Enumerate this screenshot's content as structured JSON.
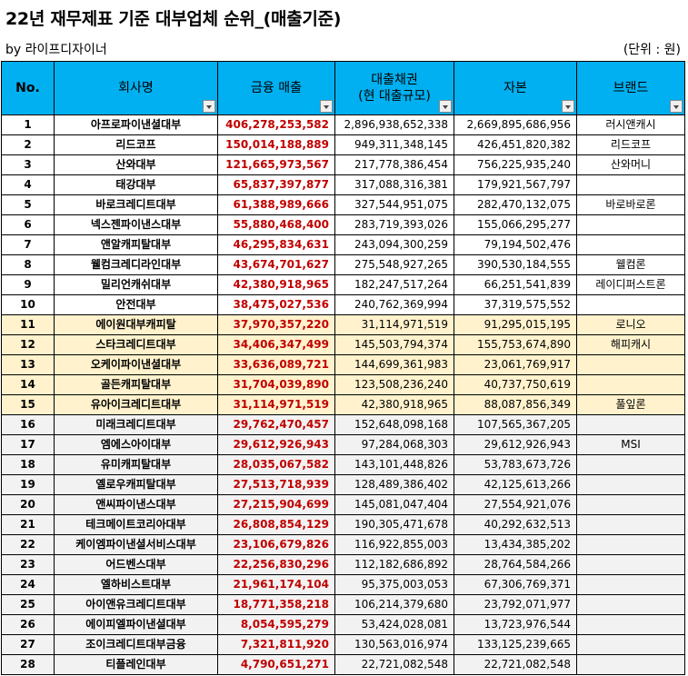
{
  "title": "22년 재무제표 기준 대부업체 순위_(매출기준)",
  "byline": "by 라이프디자이너",
  "unit": "(단위 : 원)",
  "headers": {
    "no": "No.",
    "company": "회사명",
    "revenue": "금융 매출",
    "loan_line1": "대출채권",
    "loan_line2": "(현 대출규모)",
    "capital": "자본",
    "brand": "브랜드"
  },
  "rows": [
    {
      "no": "1",
      "company": "아프로파이낸셜대부",
      "revenue": "406,278,253,582",
      "loans": "2,896,938,652,338",
      "capital": "2,669,895,686,956",
      "brand": "러시앤캐시"
    },
    {
      "no": "2",
      "company": "리드코프",
      "revenue": "150,014,188,889",
      "loans": "949,311,348,145",
      "capital": "426,451,820,382",
      "brand": "리드코프"
    },
    {
      "no": "3",
      "company": "산와대부",
      "revenue": "121,665,973,567",
      "loans": "217,778,386,454",
      "capital": "756,225,935,240",
      "brand": "산와머니"
    },
    {
      "no": "4",
      "company": "태강대부",
      "revenue": "65,837,397,877",
      "loans": "317,088,316,381",
      "capital": "179,921,567,797",
      "brand": ""
    },
    {
      "no": "5",
      "company": "바로크레디트대부",
      "revenue": "61,388,989,666",
      "loans": "327,544,951,075",
      "capital": "282,470,132,075",
      "brand": "바로바로론"
    },
    {
      "no": "6",
      "company": "넥스젠파이낸스대부",
      "revenue": "55,880,468,400",
      "loans": "283,719,393,026",
      "capital": "155,066,295,277",
      "brand": ""
    },
    {
      "no": "7",
      "company": "앤알캐피탈대부",
      "revenue": "46,295,834,631",
      "loans": "243,094,300,259",
      "capital": "79,194,502,476",
      "brand": ""
    },
    {
      "no": "8",
      "company": "웰컴크레디라인대부",
      "revenue": "43,674,701,627",
      "loans": "275,548,927,265",
      "capital": "390,530,184,555",
      "brand": "웰컴론"
    },
    {
      "no": "9",
      "company": "밀리언캐쉬대부",
      "revenue": "42,380,918,965",
      "loans": "182,247,517,264",
      "capital": "66,251,541,839",
      "brand": "레이디퍼스트론"
    },
    {
      "no": "10",
      "company": "안전대부",
      "revenue": "38,475,027,536",
      "loans": "240,762,369,994",
      "capital": "37,319,575,552",
      "brand": ""
    },
    {
      "no": "11",
      "company": "에이원대부캐피탈",
      "revenue": "37,970,357,220",
      "loans": "31,114,971,519",
      "capital": "91,295,015,195",
      "brand": "로니오"
    },
    {
      "no": "12",
      "company": "스타크레디트대부",
      "revenue": "34,406,347,499",
      "loans": "145,503,794,374",
      "capital": "155,753,674,890",
      "brand": "해피캐시"
    },
    {
      "no": "13",
      "company": "오케이파이낸셜대부",
      "revenue": "33,636,089,721",
      "loans": "144,699,361,983",
      "capital": "23,061,769,917",
      "brand": ""
    },
    {
      "no": "14",
      "company": "골든캐피탈대부",
      "revenue": "31,704,039,890",
      "loans": "123,508,236,240",
      "capital": "40,737,750,619",
      "brand": ""
    },
    {
      "no": "15",
      "company": "유아이크레디트대부",
      "revenue": "31,114,971,519",
      "loans": "42,380,918,965",
      "capital": "88,087,856,349",
      "brand": "풀잎론"
    },
    {
      "no": "16",
      "company": "미래크레디트대부",
      "revenue": "29,762,470,457",
      "loans": "152,648,098,168",
      "capital": "107,565,367,205",
      "brand": ""
    },
    {
      "no": "17",
      "company": "엠에스아이대부",
      "revenue": "29,612,926,943",
      "loans": "97,284,068,303",
      "capital": "29,612,926,943",
      "brand": "MSI"
    },
    {
      "no": "18",
      "company": "유미캐피탈대부",
      "revenue": "28,035,067,582",
      "loans": "143,101,448,826",
      "capital": "53,783,673,726",
      "brand": ""
    },
    {
      "no": "19",
      "company": "옐로우캐피탈대부",
      "revenue": "27,513,718,939",
      "loans": "128,489,386,402",
      "capital": "42,125,613,266",
      "brand": ""
    },
    {
      "no": "20",
      "company": "앤씨파이낸스대부",
      "revenue": "27,215,904,699",
      "loans": "145,081,047,404",
      "capital": "27,554,921,076",
      "brand": ""
    },
    {
      "no": "21",
      "company": "테크메이트코리아대부",
      "revenue": "26,808,854,129",
      "loans": "190,305,471,678",
      "capital": "40,292,632,513",
      "brand": ""
    },
    {
      "no": "22",
      "company": "케이엠파이낸셜서비스대부",
      "revenue": "23,106,679,826",
      "loans": "116,922,855,003",
      "capital": "13,434,385,202",
      "brand": ""
    },
    {
      "no": "23",
      "company": "어드벤스대부",
      "revenue": "22,256,830,296",
      "loans": "112,182,686,892",
      "capital": "28,764,584,266",
      "brand": ""
    },
    {
      "no": "24",
      "company": "엘하비스트대부",
      "revenue": "21,961,174,104",
      "loans": "95,375,003,053",
      "capital": "67,306,769,371",
      "brand": ""
    },
    {
      "no": "25",
      "company": "아이앤유크레디트대부",
      "revenue": "18,771,358,218",
      "loans": "106,214,379,680",
      "capital": "23,792,071,977",
      "brand": ""
    },
    {
      "no": "26",
      "company": "에이피엘파이낸셜대부",
      "revenue": "8,054,595,279",
      "loans": "53,424,028,081",
      "capital": "13,723,976,544",
      "brand": ""
    },
    {
      "no": "27",
      "company": "조이크레디트대부금융",
      "revenue": "7,321,811,920",
      "loans": "130,563,016,974",
      "capital": "133,125,239,665",
      "brand": ""
    },
    {
      "no": "28",
      "company": "티플레인대부",
      "revenue": "4,790,651,271",
      "loans": "22,721,082,548",
      "capital": "22,721,082,548",
      "brand": ""
    }
  ]
}
